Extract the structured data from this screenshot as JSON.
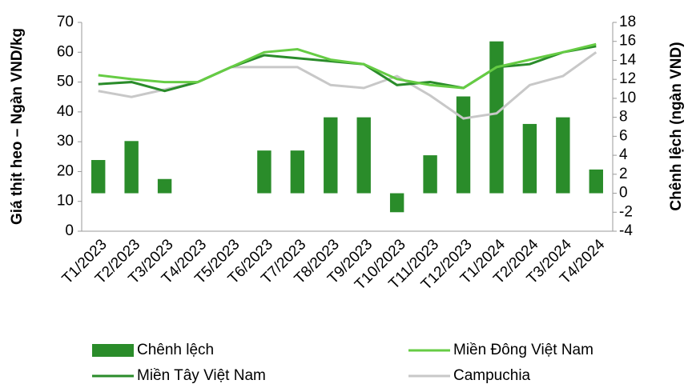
{
  "chart_data": {
    "type": "combo",
    "y_label": "Giá thịt heo – Ngàn VND/kg",
    "y2_label": "Chênh lệch (ngàn VND)",
    "categories": [
      "T1/2023",
      "T2/2023",
      "T3/2023",
      "T4/2023",
      "T5/2023",
      "T6/2023",
      "T7/2023",
      "T8/2023",
      "T9/2023",
      "T10/2023",
      "T11/2023",
      "T12/2023",
      "T1/2024",
      "T2/2024",
      "T3/2024",
      "T4/2024"
    ],
    "ylim": [
      0,
      70
    ],
    "yticks": [
      0,
      10,
      20,
      30,
      40,
      50,
      60,
      70
    ],
    "y2lim": [
      -4,
      18
    ],
    "y2ticks": [
      -4,
      -2,
      0,
      2,
      4,
      6,
      8,
      10,
      12,
      14,
      16,
      18
    ],
    "legend": "bottom",
    "series": [
      {
        "name": "Chênh lệch",
        "type": "bar",
        "axis": "y2",
        "color": "#2a8c2a",
        "values": [
          3.5,
          5.5,
          1.5,
          0,
          0,
          4.5,
          4.5,
          8,
          8,
          -2,
          4,
          10.2,
          16,
          7.3,
          8,
          2.5
        ]
      },
      {
        "name": "Miền Đông Việt Nam",
        "type": "line",
        "color": "#66cc44",
        "values": [
          52.3,
          51,
          50,
          50,
          55,
          60,
          61,
          57.5,
          56,
          51,
          49,
          48,
          55,
          57.5,
          60,
          62.7
        ]
      },
      {
        "name": "Miền Tây Việt Nam",
        "type": "line",
        "color": "#2a8c2a",
        "values": [
          49.3,
          50,
          47,
          50,
          55,
          59,
          58,
          57,
          56,
          49,
          50,
          48,
          55,
          56,
          60,
          62
        ]
      },
      {
        "name": "Campuchia",
        "type": "line",
        "color": "#c8c8c8",
        "values": [
          47,
          45,
          47.5,
          50,
          55,
          55,
          55,
          49,
          48,
          52,
          45.5,
          37.8,
          39.5,
          49,
          52,
          60
        ]
      }
    ]
  }
}
